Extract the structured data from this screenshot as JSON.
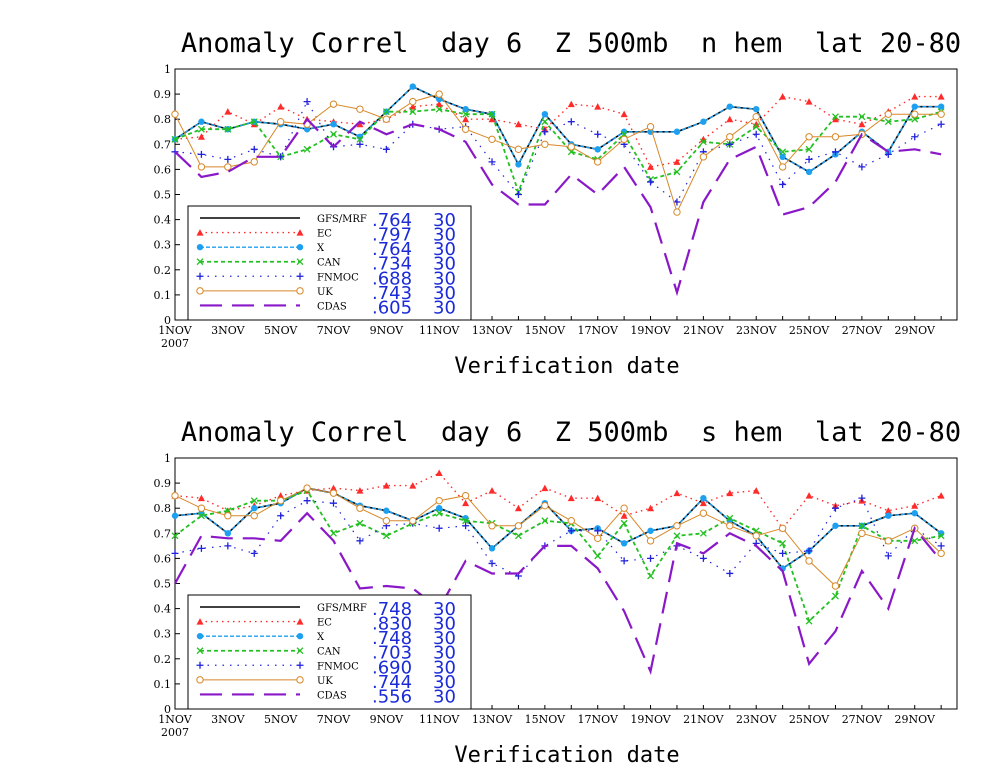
{
  "chart_data": [
    {
      "type": "line",
      "title": "Anomaly Correl  day 6  Z 500mb  n hem  lat 20-80",
      "xlabel": "Verification date",
      "ylabel": "",
      "ylim": [
        0,
        1
      ],
      "yticks": [
        "0",
        "0.1",
        "0.2",
        "0.3",
        "0.4",
        "0.5",
        "0.6",
        "0.7",
        "0.8",
        "0.9",
        "1"
      ],
      "xticks": [
        "1NOV",
        "3NOV",
        "5NOV",
        "7NOV",
        "9NOV",
        "11NOV",
        "13NOV",
        "15NOV",
        "17NOV",
        "19NOV",
        "21NOV",
        "23NOV",
        "25NOV",
        "27NOV",
        "29NOV"
      ],
      "xtick_year": "2007",
      "x": [
        1,
        2,
        3,
        4,
        5,
        6,
        7,
        8,
        9,
        10,
        11,
        12,
        13,
        14,
        15,
        16,
        17,
        18,
        19,
        20,
        21,
        22,
        23,
        24,
        25,
        26,
        27,
        28,
        29,
        30
      ],
      "legend_placement": "lower-left",
      "series": [
        {
          "name": "GFS/MRF",
          "score": ".764",
          "count": "30",
          "color": "#000000",
          "values": [
            0.72,
            0.79,
            0.76,
            0.79,
            0.78,
            0.76,
            0.78,
            0.73,
            0.83,
            0.93,
            0.88,
            0.84,
            0.82,
            0.62,
            0.82,
            0.7,
            0.68,
            0.75,
            0.75,
            0.75,
            0.79,
            0.85,
            0.84,
            0.65,
            0.59,
            0.66,
            0.75,
            0.67,
            0.85,
            0.85
          ]
        },
        {
          "name": "EC",
          "score": ".797",
          "count": "30",
          "color": "#ff2a2a",
          "values": [
            0.72,
            0.73,
            0.83,
            0.78,
            0.85,
            0.8,
            0.79,
            0.78,
            0.8,
            0.85,
            0.86,
            0.8,
            0.8,
            0.78,
            0.76,
            0.86,
            0.85,
            0.82,
            0.61,
            0.63,
            0.72,
            0.8,
            0.78,
            0.89,
            0.87,
            0.8,
            0.78,
            0.83,
            0.89,
            0.89
          ]
        },
        {
          "name": "X",
          "score": ".764",
          "count": "30",
          "color": "#1ea0f0",
          "values": [
            0.72,
            0.79,
            0.76,
            0.79,
            0.78,
            0.76,
            0.78,
            0.73,
            0.83,
            0.93,
            0.88,
            0.84,
            0.82,
            0.62,
            0.82,
            0.7,
            0.68,
            0.75,
            0.75,
            0.75,
            0.79,
            0.85,
            0.84,
            0.65,
            0.59,
            0.66,
            0.75,
            0.67,
            0.85,
            0.85
          ]
        },
        {
          "name": "CAN",
          "score": ".734",
          "count": "30",
          "color": "#22c020",
          "values": [
            0.72,
            0.76,
            0.76,
            0.79,
            0.65,
            0.68,
            0.74,
            0.72,
            0.83,
            0.83,
            0.84,
            0.82,
            0.82,
            0.51,
            0.79,
            0.67,
            0.64,
            0.74,
            0.56,
            0.59,
            0.71,
            0.7,
            0.77,
            0.67,
            0.68,
            0.81,
            0.81,
            0.79,
            0.8,
            0.83
          ]
        },
        {
          "name": "FNMOC",
          "score": ".688",
          "count": "30",
          "color": "#2222dd",
          "values": [
            0.67,
            0.66,
            0.64,
            0.68,
            0.65,
            0.87,
            0.69,
            0.7,
            0.68,
            0.78,
            0.76,
            0.77,
            0.63,
            0.5,
            0.75,
            0.79,
            0.74,
            0.7,
            0.55,
            0.47,
            0.67,
            0.7,
            0.74,
            0.54,
            0.64,
            0.67,
            0.61,
            0.66,
            0.73,
            0.78
          ]
        },
        {
          "name": "UK",
          "score": ".743",
          "count": "30",
          "color": "#d88828",
          "values": [
            0.82,
            0.61,
            0.61,
            0.63,
            0.79,
            0.78,
            0.86,
            0.84,
            0.8,
            0.87,
            0.9,
            0.76,
            0.72,
            0.68,
            0.7,
            0.69,
            0.63,
            0.72,
            0.77,
            0.43,
            0.65,
            0.73,
            0.81,
            0.61,
            0.73,
            0.73,
            0.74,
            0.82,
            0.82,
            0.82
          ]
        },
        {
          "name": "CDAS",
          "score": ".605",
          "count": "30",
          "color": "#8a18c8",
          "values": [
            0.67,
            0.57,
            0.59,
            0.65,
            0.65,
            0.8,
            0.69,
            0.79,
            0.74,
            0.78,
            0.76,
            0.71,
            0.54,
            0.46,
            0.46,
            0.58,
            0.5,
            0.61,
            0.45,
            0.11,
            0.47,
            0.64,
            0.69,
            0.42,
            0.45,
            0.55,
            0.74,
            0.67,
            0.68,
            0.66
          ]
        }
      ]
    },
    {
      "type": "line",
      "title": "Anomaly Correl  day 6  Z 500mb  s hem  lat 20-80",
      "xlabel": "Verification date",
      "ylabel": "",
      "ylim": [
        0,
        1
      ],
      "yticks": [
        "0",
        "0.1",
        "0.2",
        "0.3",
        "0.4",
        "0.5",
        "0.6",
        "0.7",
        "0.8",
        "0.9",
        "1"
      ],
      "xticks": [
        "1NOV",
        "3NOV",
        "5NOV",
        "7NOV",
        "9NOV",
        "11NOV",
        "13NOV",
        "15NOV",
        "17NOV",
        "19NOV",
        "21NOV",
        "23NOV",
        "25NOV",
        "27NOV",
        "29NOV"
      ],
      "xtick_year": "2007",
      "x": [
        1,
        2,
        3,
        4,
        5,
        6,
        7,
        8,
        9,
        10,
        11,
        12,
        13,
        14,
        15,
        16,
        17,
        18,
        19,
        20,
        21,
        22,
        23,
        24,
        25,
        26,
        27,
        28,
        29,
        30
      ],
      "legend_placement": "lower-left",
      "series": [
        {
          "name": "GFS/MRF",
          "score": ".748",
          "count": "30",
          "color": "#000000",
          "values": [
            0.77,
            0.78,
            0.7,
            0.8,
            0.82,
            0.88,
            0.86,
            0.81,
            0.79,
            0.75,
            0.8,
            0.76,
            0.64,
            0.73,
            0.82,
            0.71,
            0.72,
            0.66,
            0.71,
            0.73,
            0.84,
            0.75,
            0.69,
            0.56,
            0.63,
            0.73,
            0.73,
            0.77,
            0.78,
            0.7
          ]
        },
        {
          "name": "EC",
          "score": ".830",
          "count": "30",
          "color": "#ff2a2a",
          "values": [
            0.85,
            0.84,
            0.79,
            0.81,
            0.85,
            0.87,
            0.88,
            0.87,
            0.89,
            0.89,
            0.94,
            0.82,
            0.87,
            0.8,
            0.88,
            0.84,
            0.84,
            0.77,
            0.8,
            0.86,
            0.82,
            0.86,
            0.87,
            0.72,
            0.85,
            0.81,
            0.83,
            0.79,
            0.81,
            0.85
          ]
        },
        {
          "name": "X",
          "score": ".748",
          "count": "30",
          "color": "#1ea0f0",
          "values": [
            0.77,
            0.78,
            0.7,
            0.8,
            0.82,
            0.88,
            0.86,
            0.81,
            0.79,
            0.75,
            0.8,
            0.76,
            0.64,
            0.73,
            0.82,
            0.71,
            0.72,
            0.66,
            0.71,
            0.73,
            0.84,
            0.75,
            0.69,
            0.56,
            0.63,
            0.73,
            0.73,
            0.77,
            0.78,
            0.7
          ]
        },
        {
          "name": "CAN",
          "score": ".703",
          "count": "30",
          "color": "#22c020",
          "values": [
            0.69,
            0.77,
            0.79,
            0.83,
            0.83,
            0.87,
            0.7,
            0.74,
            0.69,
            0.74,
            0.78,
            0.75,
            0.74,
            0.69,
            0.75,
            0.74,
            0.61,
            0.74,
            0.53,
            0.69,
            0.7,
            0.76,
            0.71,
            0.66,
            0.35,
            0.45,
            0.73,
            0.67,
            0.67,
            0.69
          ]
        },
        {
          "name": "FNMOC",
          "score": ".690",
          "count": "30",
          "color": "#2222dd",
          "values": [
            0.62,
            0.64,
            0.65,
            0.62,
            0.77,
            0.83,
            0.82,
            0.67,
            0.73,
            0.74,
            0.72,
            0.73,
            0.58,
            0.53,
            0.65,
            0.71,
            0.71,
            0.59,
            0.6,
            0.65,
            0.6,
            0.54,
            0.66,
            0.62,
            0.63,
            0.8,
            0.84,
            0.61,
            0.72,
            0.65
          ]
        },
        {
          "name": "UK",
          "score": ".744",
          "count": "30",
          "color": "#d88828",
          "values": [
            0.85,
            0.8,
            0.77,
            0.77,
            0.83,
            0.88,
            0.86,
            0.8,
            0.75,
            0.75,
            0.83,
            0.85,
            0.73,
            0.73,
            0.81,
            0.75,
            0.68,
            0.8,
            0.67,
            0.73,
            0.78,
            0.73,
            0.69,
            0.72,
            0.59,
            0.49,
            0.7,
            0.67,
            0.72,
            0.62
          ]
        },
        {
          "name": "CDAS",
          "score": ".556",
          "count": "30",
          "color": "#8a18c8",
          "values": [
            0.5,
            0.69,
            0.68,
            0.68,
            0.67,
            0.78,
            0.67,
            0.48,
            0.49,
            0.48,
            0.4,
            0.59,
            0.54,
            0.54,
            0.65,
            0.65,
            0.56,
            0.39,
            0.15,
            0.66,
            0.62,
            0.7,
            0.65,
            0.55,
            0.18,
            0.31,
            0.55,
            0.4,
            0.72,
            0.59
          ]
        }
      ]
    }
  ]
}
